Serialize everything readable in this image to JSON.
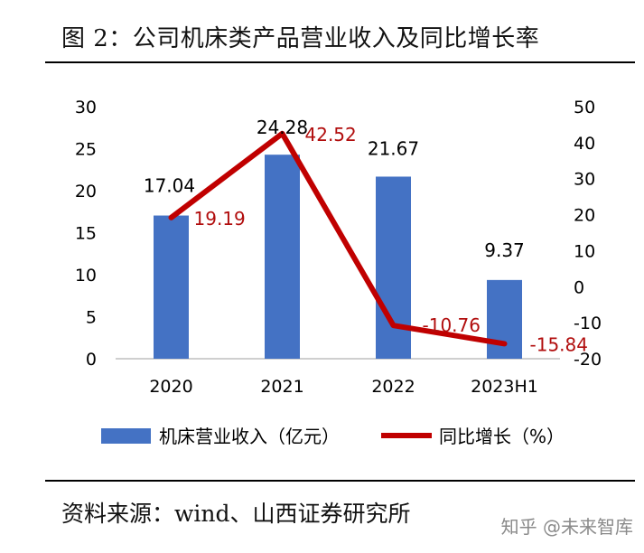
{
  "figure": {
    "title": "图 2：公司机床类产品营业收入及同比增长率",
    "source": "资料来源：wind、山西证券研究所",
    "watermark": "知乎 @未来智库"
  },
  "chart_data": {
    "type": "bar+line",
    "title": "图 2：公司机床类产品营业收入及同比增长率",
    "categories": [
      "2020",
      "2021",
      "2022",
      "2023H1"
    ],
    "series": [
      {
        "name": "机床营业收入（亿元）",
        "type": "bar",
        "axis": "left",
        "color": "#4472c4",
        "values": [
          17.04,
          24.28,
          21.67,
          9.37
        ],
        "labels": [
          "17.04",
          "24.28",
          "21.67",
          "9.37"
        ]
      },
      {
        "name": "同比增长（%）",
        "type": "line",
        "axis": "right",
        "color": "#c00000",
        "values": [
          19.19,
          42.52,
          -10.76,
          -15.84
        ],
        "labels": [
          "19.19",
          "42.52",
          "-10.76",
          "-15.84"
        ]
      }
    ],
    "left_axis": {
      "min": 0,
      "max": 30,
      "step": 5,
      "ticks": [
        "0",
        "5",
        "10",
        "15",
        "20",
        "25",
        "30"
      ]
    },
    "right_axis": {
      "min": -20,
      "max": 50,
      "step": 10,
      "ticks": [
        "-20",
        "-10",
        "0",
        "10",
        "20",
        "30",
        "40",
        "50"
      ]
    },
    "grid": false,
    "legend_position": "bottom"
  }
}
